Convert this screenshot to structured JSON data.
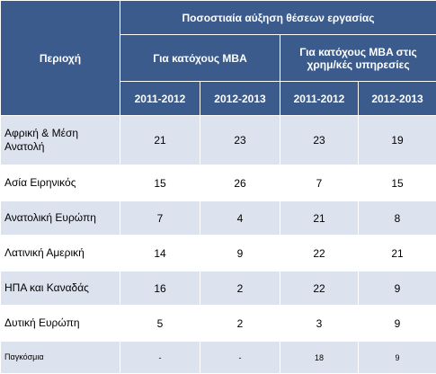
{
  "table": {
    "region_header": "Περιοχή",
    "group_header": "Ποσοστιαία αύξηση θέσεων εργασίας",
    "sub_headers": [
      "Για κατόχους MBA",
      "Για κατόχους MBA στις χρημ/κές υπηρεσίες"
    ],
    "years": [
      "2011-2012",
      "2012-2013",
      "2011-2012",
      "2012-2013"
    ],
    "rows": [
      {
        "region": "Αφρική & Μέση Ανατολή",
        "values": [
          "21",
          "23",
          "23",
          "19"
        ]
      },
      {
        "region": "Ασία Ειρηνικός",
        "values": [
          "15",
          "26",
          "7",
          "15"
        ]
      },
      {
        "region": "Ανατολική Ευρώπη",
        "values": [
          "7",
          "4",
          "21",
          "8"
        ]
      },
      {
        "region": "Λατινική Αμερική",
        "values": [
          "14",
          "9",
          "22",
          "21"
        ]
      },
      {
        "region": "ΗΠΑ και Καναδάς",
        "values": [
          "16",
          "2",
          "22",
          "9"
        ]
      },
      {
        "region": "Δυτική Ευρώπη",
        "values": [
          "5",
          "2",
          "3",
          "9"
        ]
      },
      {
        "region": "Παγκόσμια",
        "values": [
          "-",
          "-",
          "18",
          "9"
        ]
      }
    ]
  }
}
